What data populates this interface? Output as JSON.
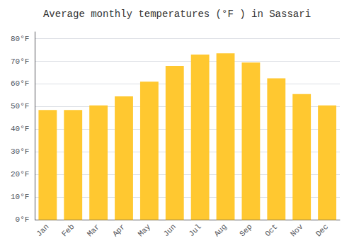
{
  "chart_data": {
    "type": "bar",
    "title": "Average monthly temperatures (°F ) in Sassari",
    "categories": [
      "Jan",
      "Feb",
      "Mar",
      "Apr",
      "May",
      "Jun",
      "Jul",
      "Aug",
      "Sep",
      "Oct",
      "Nov",
      "Dec"
    ],
    "values": [
      48.5,
      48.5,
      50.5,
      54.5,
      61.0,
      68.0,
      73.0,
      73.5,
      69.5,
      62.5,
      55.5,
      50.5
    ],
    "color": "#FFC830",
    "ylim": [
      0,
      83
    ],
    "yticks": [
      {
        "value": 0,
        "label": "0°F"
      },
      {
        "value": 10,
        "label": "10°F"
      },
      {
        "value": 20,
        "label": "20°F"
      },
      {
        "value": 30,
        "label": "30°F"
      },
      {
        "value": 40,
        "label": "40°F"
      },
      {
        "value": 50,
        "label": "50°F"
      },
      {
        "value": 60,
        "label": "60°F"
      },
      {
        "value": 70,
        "label": "70°F"
      },
      {
        "value": 80,
        "label": "80°F"
      }
    ],
    "grid": true
  }
}
